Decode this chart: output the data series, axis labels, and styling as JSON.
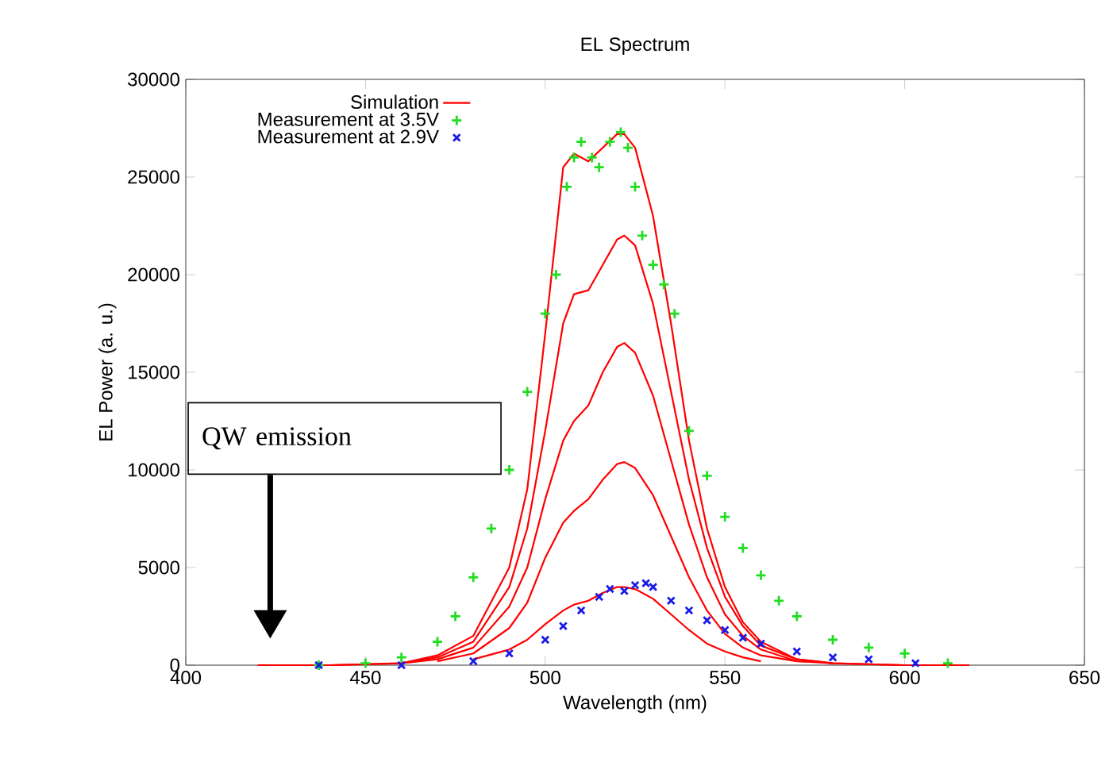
{
  "chart_data": {
    "type": "line",
    "title": "EL Spectrum",
    "xlabel": "Wavelength (nm)",
    "ylabel": "EL Power (a. u.)",
    "xlim": [
      400,
      650
    ],
    "xticks": [
      400,
      450,
      500,
      550,
      600,
      650
    ],
    "ylim": [
      0,
      30000
    ],
    "yticks": [
      0,
      5000,
      10000,
      15000,
      20000,
      25000,
      30000
    ],
    "legend": "top left",
    "line_style": "solid",
    "annotations": [
      "QW  emission"
    ],
    "series": [
      {
        "name": "Simulation",
        "color": "#ff0000",
        "x": [
          420,
          440,
          460,
          470,
          480,
          490,
          495,
          500,
          505,
          508,
          512,
          516,
          520,
          522,
          525,
          530,
          535,
          540,
          545,
          550,
          555,
          560,
          570,
          580,
          600,
          618
        ],
        "values": [
          0,
          0,
          100,
          500,
          1500,
          5000,
          9000,
          17000,
          25500,
          26200,
          25800,
          26500,
          27200,
          27200,
          26500,
          23000,
          17500,
          11500,
          7000,
          4000,
          2200,
          1200,
          300,
          100,
          0,
          0
        ]
      },
      {
        "color": "#ff0000",
        "x": [
          440,
          460,
          470,
          480,
          490,
          495,
          500,
          505,
          508,
          512,
          516,
          520,
          522,
          525,
          530,
          535,
          540,
          545,
          550,
          555,
          560,
          570,
          580,
          600
        ],
        "values": [
          0,
          100,
          400,
          1200,
          4000,
          7000,
          12000,
          17500,
          19000,
          19200,
          20500,
          21800,
          22000,
          21500,
          18500,
          14000,
          9500,
          6000,
          3500,
          2000,
          1000,
          300,
          100,
          0
        ]
      },
      {
        "color": "#ff0000",
        "x": [
          460,
          470,
          480,
          490,
          495,
          500,
          505,
          508,
          512,
          516,
          520,
          522,
          525,
          530,
          535,
          540,
          545,
          550,
          555,
          560,
          570,
          580
        ],
        "values": [
          100,
          300,
          900,
          3000,
          5000,
          8500,
          11500,
          12500,
          13300,
          15000,
          16300,
          16500,
          16000,
          13800,
          10500,
          7200,
          4500,
          2600,
          1500,
          800,
          200,
          100
        ]
      },
      {
        "color": "#ff0000",
        "x": [
          470,
          480,
          490,
          495,
          500,
          505,
          508,
          512,
          516,
          520,
          522,
          525,
          530,
          535,
          540,
          545,
          550,
          555,
          560,
          570
        ],
        "values": [
          200,
          600,
          1900,
          3200,
          5500,
          7300,
          7900,
          8500,
          9500,
          10300,
          10400,
          10100,
          8700,
          6600,
          4500,
          2800,
          1600,
          900,
          500,
          200
        ]
      },
      {
        "color": "#ff0000",
        "x": [
          480,
          490,
          495,
          500,
          505,
          508,
          512,
          516,
          520,
          522,
          525,
          530,
          535,
          540,
          545,
          550,
          555,
          560
        ],
        "values": [
          300,
          800,
          1300,
          2100,
          2800,
          3100,
          3300,
          3700,
          4000,
          4000,
          3900,
          3400,
          2600,
          1800,
          1100,
          700,
          400,
          200
        ]
      },
      {
        "name": "Measurement at 3.5V",
        "type": "scatter",
        "marker": "plus",
        "color": "#22dd22",
        "x": [
          437,
          450,
          460,
          470,
          475,
          480,
          485,
          490,
          495,
          500,
          503,
          506,
          508,
          510,
          513,
          515,
          518,
          521,
          523,
          525,
          527,
          530,
          533,
          536,
          540,
          545,
          550,
          555,
          560,
          565,
          570,
          580,
          590,
          600,
          612
        ],
        "values": [
          0,
          100,
          400,
          1200,
          2500,
          4500,
          7000,
          10000,
          14000,
          18000,
          20000,
          24500,
          26000,
          26800,
          26000,
          25500,
          26800,
          27300,
          26500,
          24500,
          22000,
          20500,
          19500,
          18000,
          12000,
          9700,
          7600,
          6000,
          4600,
          3300,
          2500,
          1300,
          900,
          600,
          100
        ]
      },
      {
        "name": "Measurement at 2.9V",
        "type": "scatter",
        "marker": "cross",
        "color": "#1a1ae6",
        "x": [
          437,
          460,
          480,
          490,
          500,
          505,
          510,
          515,
          518,
          522,
          525,
          528,
          530,
          535,
          540,
          545,
          550,
          555,
          560,
          570,
          580,
          590,
          603
        ],
        "values": [
          0,
          0,
          200,
          600,
          1300,
          2000,
          2800,
          3500,
          3900,
          3800,
          4100,
          4200,
          4000,
          3300,
          2800,
          2300,
          1800,
          1400,
          1100,
          700,
          400,
          300,
          100
        ]
      }
    ]
  }
}
